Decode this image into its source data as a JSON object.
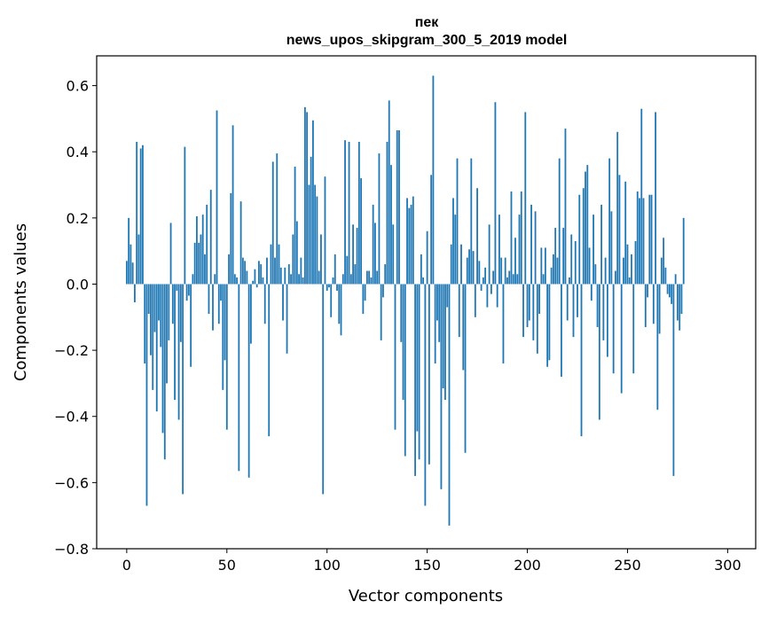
{
  "chart_data": {
    "type": "bar",
    "title": "пек",
    "subtitle": "news_upos_skipgram_300_5_2019 model",
    "xlabel": "Vector components",
    "ylabel": "Components values",
    "xlim": [
      -15,
      314
    ],
    "ylim": [
      -0.8,
      0.69
    ],
    "xticks": [
      0,
      50,
      100,
      150,
      200,
      250,
      300
    ],
    "yticks": [
      -0.8,
      -0.6,
      -0.4,
      -0.2,
      0.0,
      0.2,
      0.4,
      0.6
    ],
    "ytick_labels": [
      "−0.8",
      "−0.6",
      "−0.4",
      "−0.2",
      "0.0",
      "0.2",
      "0.4",
      "0.6"
    ],
    "bar_color": "#1f77b4",
    "grid": false,
    "legend": "none",
    "values": [
      0.07,
      0.2,
      0.12,
      0.065,
      -0.055,
      0.43,
      0.15,
      0.41,
      0.42,
      -0.24,
      -0.67,
      -0.09,
      -0.215,
      -0.32,
      -0.145,
      -0.385,
      -0.11,
      -0.19,
      -0.45,
      -0.53,
      -0.3,
      -0.17,
      0.185,
      -0.12,
      -0.35,
      -0.02,
      -0.41,
      -0.175,
      -0.635,
      0.415,
      -0.05,
      -0.035,
      -0.25,
      0.03,
      0.125,
      0.205,
      0.125,
      0.15,
      0.21,
      0.09,
      0.24,
      -0.09,
      0.285,
      -0.14,
      0.03,
      0.525,
      -0.12,
      -0.05,
      -0.32,
      -0.23,
      -0.44,
      0.09,
      0.275,
      0.48,
      0.03,
      0.02,
      -0.565,
      0.25,
      0.08,
      0.07,
      0.04,
      -0.585,
      -0.18,
      0.01,
      0.045,
      -0.01,
      0.07,
      0.06,
      0.02,
      -0.12,
      0.08,
      -0.46,
      0.12,
      0.37,
      0.08,
      0.395,
      0.12,
      0.05,
      -0.11,
      0.05,
      -0.21,
      0.06,
      0.03,
      0.15,
      0.355,
      0.19,
      0.03,
      0.08,
      0.02,
      0.535,
      0.52,
      0.3,
      0.385,
      0.495,
      0.3,
      0.265,
      0.04,
      0.15,
      -0.635,
      0.325,
      -0.02,
      -0.01,
      -0.1,
      0.02,
      0.09,
      -0.02,
      -0.12,
      -0.155,
      0.03,
      0.435,
      0.085,
      0.43,
      0.03,
      0.18,
      0.06,
      0.17,
      0.43,
      0.32,
      -0.09,
      -0.05,
      0.04,
      0.04,
      0.02,
      0.24,
      0.185,
      0.04,
      0.395,
      -0.17,
      -0.04,
      0.06,
      0.43,
      0.555,
      0.36,
      0.18,
      -0.44,
      0.465,
      0.465,
      -0.175,
      -0.35,
      -0.52,
      0.26,
      0.23,
      0.24,
      0.265,
      -0.58,
      -0.445,
      -0.53,
      0.09,
      0.02,
      -0.67,
      0.16,
      -0.545,
      0.33,
      0.63,
      -0.24,
      -0.11,
      -0.175,
      -0.62,
      -0.315,
      -0.35,
      -0.07,
      -0.73,
      0.12,
      0.26,
      0.21,
      0.38,
      -0.16,
      0.12,
      -0.26,
      -0.51,
      0.08,
      0.105,
      0.38,
      0.1,
      -0.1,
      0.29,
      0.07,
      -0.02,
      0.02,
      0.05,
      -0.07,
      0.18,
      -0.03,
      0.04,
      0.55,
      -0.07,
      0.21,
      0.08,
      -0.24,
      0.08,
      0.02,
      0.04,
      0.28,
      0.03,
      0.14,
      0.03,
      0.21,
      0.28,
      -0.16,
      0.52,
      -0.13,
      -0.11,
      0.24,
      -0.17,
      0.22,
      -0.21,
      -0.09,
      0.11,
      0.03,
      0.11,
      -0.25,
      -0.23,
      0.05,
      0.09,
      0.17,
      0.08,
      0.38,
      -0.28,
      0.17,
      0.47,
      -0.11,
      0.02,
      0.15,
      -0.16,
      0.13,
      -0.1,
      0.27,
      -0.46,
      0.29,
      0.34,
      0.36,
      0.11,
      -0.05,
      0.21,
      0.06,
      -0.13,
      -0.41,
      0.24,
      -0.17,
      0.08,
      -0.22,
      0.38,
      0.22,
      -0.27,
      0.04,
      0.46,
      0.33,
      -0.33,
      0.08,
      0.31,
      0.12,
      0.02,
      0.09,
      -0.27,
      0.13,
      0.28,
      0.26,
      0.53,
      0.26,
      -0.13,
      -0.04,
      0.27,
      0.27,
      -0.12,
      0.52,
      -0.38,
      -0.15,
      0.08,
      0.14,
      0.05,
      -0.03,
      -0.04,
      -0.06,
      -0.58,
      0.03,
      -0.11,
      -0.14,
      -0.09,
      0.2
    ]
  }
}
